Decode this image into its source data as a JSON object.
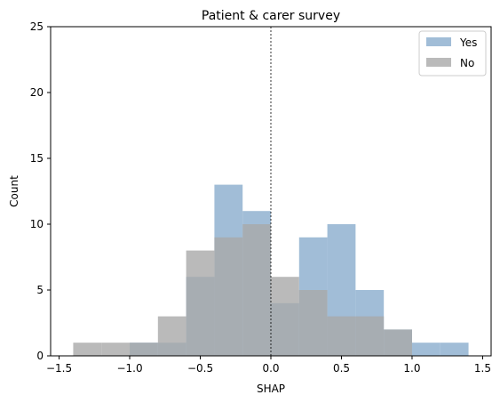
{
  "chart_data": {
    "type": "bar",
    "title": "Patient & carer survey",
    "xlabel": "SHAP",
    "ylabel": "Count",
    "xlim": [
      -1.56,
      1.56
    ],
    "ylim": [
      0,
      25
    ],
    "xticks": [
      -1.5,
      -1.0,
      -0.5,
      0.0,
      0.5,
      1.0,
      1.5
    ],
    "xtick_labels": [
      "−1.5",
      "−1.0",
      "−0.5",
      "0.0",
      "0.5",
      "1.0",
      "1.5"
    ],
    "yticks": [
      0,
      5,
      10,
      15,
      20,
      25
    ],
    "ytick_labels": [
      "0",
      "5",
      "10",
      "15",
      "20",
      "25"
    ],
    "grid": false,
    "legend_position": "top-right",
    "vline_x": 0.0,
    "bin_edges": [
      -1.4,
      -1.2,
      -1.0,
      -0.8,
      -0.6,
      -0.4,
      -0.2,
      0.0,
      0.2,
      0.4,
      0.6,
      0.8,
      1.0,
      1.2,
      1.4
    ],
    "series": [
      {
        "name": "Yes",
        "color": "#8aaccd",
        "values": [
          0,
          0,
          1,
          1,
          6,
          13,
          11,
          4,
          9,
          10,
          5,
          2,
          1,
          1
        ]
      },
      {
        "name": "No",
        "color": "#a9a9a9",
        "values": [
          1,
          1,
          1,
          3,
          8,
          9,
          10,
          6,
          5,
          3,
          3,
          2,
          0,
          0
        ]
      }
    ]
  }
}
